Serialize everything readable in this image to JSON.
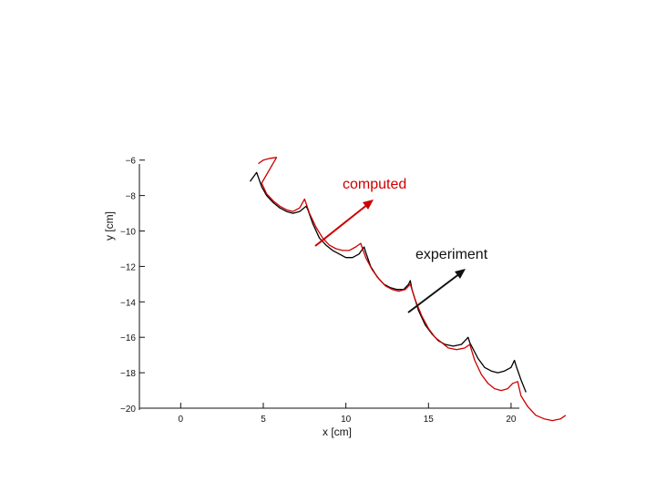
{
  "chart_data": {
    "type": "line",
    "title": "",
    "xlabel": "x [cm]",
    "ylabel": "y [cm]",
    "xlim": [
      -2.5,
      20.5
    ],
    "ylim": [
      -20,
      -5.5
    ],
    "x_ticks": [
      0,
      5,
      10,
      15,
      20
    ],
    "y_ticks": [
      -6,
      -8,
      -10,
      -12,
      -14,
      -16,
      -18,
      -20
    ],
    "grid": false,
    "series": [
      {
        "name": "experiment",
        "color": "#000000",
        "points": [
          [
            4.2,
            -7.2
          ],
          [
            4.6,
            -6.7
          ],
          [
            4.9,
            -7.5
          ],
          [
            5.2,
            -8.0
          ],
          [
            5.6,
            -8.4
          ],
          [
            6.0,
            -8.7
          ],
          [
            6.4,
            -8.9
          ],
          [
            6.8,
            -9.0
          ],
          [
            7.2,
            -8.9
          ],
          [
            7.6,
            -8.6
          ],
          [
            7.7,
            -8.8
          ],
          [
            8.0,
            -9.6
          ],
          [
            8.4,
            -10.4
          ],
          [
            8.8,
            -10.8
          ],
          [
            9.2,
            -11.1
          ],
          [
            9.6,
            -11.3
          ],
          [
            10.0,
            -11.5
          ],
          [
            10.4,
            -11.5
          ],
          [
            10.8,
            -11.3
          ],
          [
            11.1,
            -10.9
          ],
          [
            11.2,
            -11.2
          ],
          [
            11.5,
            -12.0
          ],
          [
            11.9,
            -12.6
          ],
          [
            12.3,
            -13.0
          ],
          [
            12.7,
            -13.2
          ],
          [
            13.1,
            -13.3
          ],
          [
            13.5,
            -13.3
          ],
          [
            13.8,
            -13.0
          ],
          [
            13.9,
            -12.8
          ],
          [
            14.0,
            -13.3
          ],
          [
            14.4,
            -14.5
          ],
          [
            14.8,
            -15.3
          ],
          [
            15.2,
            -15.8
          ],
          [
            15.6,
            -16.2
          ],
          [
            16.0,
            -16.4
          ],
          [
            16.5,
            -16.5
          ],
          [
            17.0,
            -16.4
          ],
          [
            17.4,
            -16.0
          ],
          [
            17.5,
            -16.3
          ],
          [
            18.0,
            -17.2
          ],
          [
            18.4,
            -17.7
          ],
          [
            18.8,
            -17.9
          ],
          [
            19.2,
            -18.0
          ],
          [
            19.6,
            -17.9
          ],
          [
            20.0,
            -17.7
          ],
          [
            20.2,
            -17.3
          ],
          [
            20.3,
            -17.6
          ],
          [
            20.6,
            -18.4
          ],
          [
            20.9,
            -19.1
          ]
        ]
      },
      {
        "name": "computed",
        "color": "#cc0000",
        "points": [
          [
            4.7,
            -6.2
          ],
          [
            5.0,
            -6.0
          ],
          [
            5.4,
            -5.9
          ],
          [
            5.8,
            -5.85
          ],
          [
            4.9,
            -7.3
          ],
          [
            5.2,
            -7.9
          ],
          [
            5.6,
            -8.3
          ],
          [
            6.0,
            -8.6
          ],
          [
            6.4,
            -8.8
          ],
          [
            6.8,
            -8.9
          ],
          [
            7.2,
            -8.7
          ],
          [
            7.5,
            -8.2
          ],
          [
            7.8,
            -9.0
          ],
          [
            8.2,
            -9.8
          ],
          [
            8.6,
            -10.4
          ],
          [
            9.0,
            -10.8
          ],
          [
            9.4,
            -11.0
          ],
          [
            9.8,
            -11.1
          ],
          [
            10.2,
            -11.1
          ],
          [
            10.6,
            -10.9
          ],
          [
            10.9,
            -10.7
          ],
          [
            11.2,
            -11.5
          ],
          [
            11.6,
            -12.2
          ],
          [
            12.0,
            -12.7
          ],
          [
            12.4,
            -13.1
          ],
          [
            12.8,
            -13.3
          ],
          [
            13.2,
            -13.4
          ],
          [
            13.6,
            -13.3
          ],
          [
            13.9,
            -13.0
          ],
          [
            14.2,
            -13.9
          ],
          [
            14.6,
            -14.8
          ],
          [
            15.0,
            -15.5
          ],
          [
            15.4,
            -16.0
          ],
          [
            15.8,
            -16.3
          ],
          [
            16.2,
            -16.6
          ],
          [
            16.7,
            -16.7
          ],
          [
            17.2,
            -16.6
          ],
          [
            17.5,
            -16.4
          ],
          [
            17.8,
            -17.3
          ],
          [
            18.2,
            -18.1
          ],
          [
            18.6,
            -18.6
          ],
          [
            19.0,
            -18.9
          ],
          [
            19.4,
            -19.0
          ],
          [
            19.8,
            -18.9
          ],
          [
            20.1,
            -18.6
          ],
          [
            20.4,
            -18.5
          ],
          [
            20.6,
            -19.3
          ],
          [
            21.0,
            -19.9
          ],
          [
            21.5,
            -20.4
          ],
          [
            22.0,
            -20.6
          ],
          [
            22.5,
            -20.7
          ],
          [
            23.0,
            -20.6
          ],
          [
            23.3,
            -20.4
          ]
        ]
      }
    ],
    "annotations": [
      {
        "text": "computed",
        "color": "#cc0000"
      },
      {
        "text": "experiment",
        "color": "#000000"
      }
    ]
  }
}
